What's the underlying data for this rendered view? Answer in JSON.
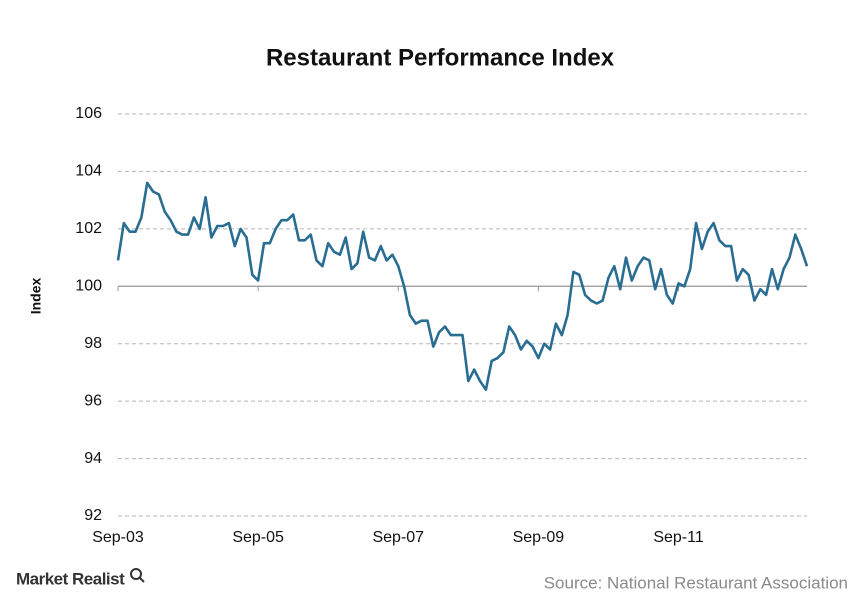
{
  "chart_data": {
    "type": "line",
    "title": "Restaurant Performance Index",
    "y_label": "Index",
    "source": "Source: National Restaurant Association",
    "brand": "Market Realist",
    "categories": [
      "Sep-03",
      null,
      null,
      null,
      null,
      null,
      null,
      null,
      null,
      null,
      null,
      null,
      null,
      null,
      null,
      null,
      null,
      null,
      null,
      null,
      null,
      null,
      null,
      null,
      "Sep-05",
      null,
      null,
      null,
      null,
      null,
      null,
      null,
      null,
      null,
      null,
      null,
      null,
      null,
      null,
      null,
      null,
      null,
      null,
      null,
      null,
      null,
      null,
      null,
      "Sep-07",
      null,
      null,
      null,
      null,
      null,
      null,
      null,
      null,
      null,
      null,
      null,
      null,
      null,
      null,
      null,
      null,
      null,
      null,
      null,
      null,
      null,
      null,
      null,
      "Sep-09",
      null,
      null,
      null,
      null,
      null,
      null,
      null,
      null,
      null,
      null,
      null,
      null,
      null,
      null,
      null,
      null,
      null,
      null,
      null,
      null,
      null,
      null,
      null,
      "Sep-11",
      null,
      null,
      null,
      null,
      null,
      null,
      null,
      null,
      null,
      null,
      null,
      null,
      null,
      null,
      null,
      null,
      null,
      null,
      null,
      null,
      null,
      null
    ],
    "series": [
      {
        "name": "Restaurant Performance Index",
        "color": "#2a6d93",
        "values": [
          100.9,
          102.2,
          101.9,
          101.9,
          102.4,
          103.6,
          103.3,
          103.2,
          102.6,
          102.3,
          101.9,
          101.8,
          101.8,
          102.4,
          102.0,
          103.1,
          101.7,
          102.1,
          102.1,
          102.2,
          101.4,
          102.0,
          101.7,
          100.4,
          100.2,
          101.5,
          101.5,
          102.0,
          102.3,
          102.3,
          102.5,
          101.6,
          101.6,
          101.8,
          100.9,
          100.7,
          101.5,
          101.2,
          101.1,
          101.7,
          100.6,
          100.8,
          101.9,
          101.0,
          100.9,
          101.4,
          100.9,
          101.1,
          100.7,
          100.0,
          99.0,
          98.7,
          98.8,
          98.8,
          97.9,
          98.4,
          98.6,
          98.3,
          98.3,
          98.3,
          96.7,
          97.1,
          96.7,
          96.4,
          97.4,
          97.5,
          97.7,
          98.6,
          98.3,
          97.8,
          98.1,
          97.9,
          97.5,
          98.0,
          97.8,
          98.7,
          98.3,
          99.0,
          100.5,
          100.4,
          99.7,
          99.5,
          99.4,
          99.5,
          100.3,
          100.7,
          99.9,
          101.0,
          100.2,
          100.7,
          101.0,
          100.9,
          99.9,
          100.6,
          99.7,
          99.4,
          100.1,
          100.0,
          100.6,
          102.2,
          101.3,
          101.9,
          102.2,
          101.6,
          101.4,
          101.4,
          100.2,
          100.6,
          100.4,
          99.5,
          99.9,
          99.7,
          100.6,
          99.9,
          100.6,
          101.0,
          101.8,
          101.3,
          100.7
        ]
      }
    ],
    "ylim": [
      92,
      106
    ],
    "yticks": [
      92,
      94,
      96,
      98,
      100,
      102,
      104,
      106
    ],
    "xaxis_crosses": 100,
    "grid": true
  }
}
